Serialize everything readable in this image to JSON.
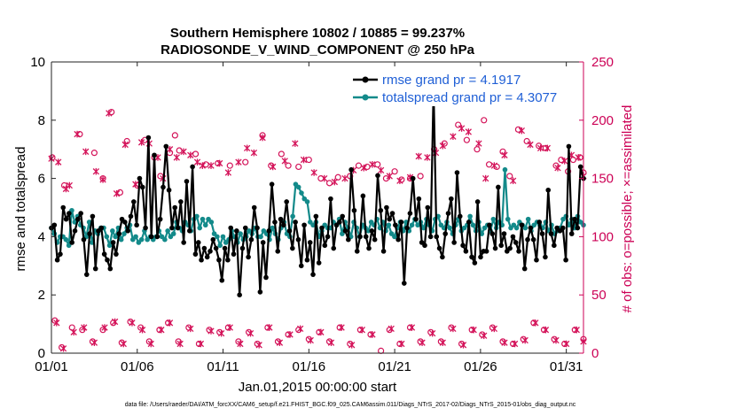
{
  "chart_data": {
    "type": "line",
    "title": "Southern Hemisphere 10802 / 10885 = 99.237%",
    "subtitle": "RADIOSONDE_V_WIND_COMPONENT @ 250 hPa",
    "xlabel": "Jan.01,2015 00:00:00 start",
    "ylabel_left": "rmse and totalspread",
    "ylabel_right": "# of obs: o=possible; ×=assimilated",
    "xlim": [
      0,
      31
    ],
    "ylim_left": [
      0,
      10
    ],
    "ylim_right": [
      0,
      250
    ],
    "x_ticks": [
      0,
      5,
      10,
      15,
      20,
      25,
      30
    ],
    "x_tick_labels": [
      "01/01",
      "01/06",
      "01/11",
      "01/16",
      "01/21",
      "01/26",
      "01/31"
    ],
    "y_ticks_left": [
      "0",
      "2",
      "4",
      "6",
      "8",
      "10"
    ],
    "y_ticks_right": [
      "0",
      "50",
      "100",
      "150",
      "200",
      "250"
    ],
    "series": [
      {
        "name": "rmse grand pr = 4.1917",
        "color": "#000000",
        "values": [
          4.3,
          4.4,
          3.2,
          3.4,
          5.0,
          4.6,
          4.8,
          3.8,
          4.2,
          4.6,
          4.8,
          3.9,
          2.7,
          4.1,
          4.7,
          2.9,
          4.2,
          4.3,
          3.4,
          3.2,
          2.9,
          3.8,
          3.4,
          4.1,
          4.6,
          4.5,
          4.2,
          4.7,
          5.2,
          4.4,
          6.0,
          5.7,
          4.3,
          7.4,
          4.0,
          6.8,
          4.0,
          4.6,
          5.7,
          7.1,
          5.6,
          4.3,
          5.0,
          4.3,
          5.2,
          3.8,
          5.9,
          4.2,
          6.4,
          3.4,
          3.8,
          3.2,
          3.6,
          3.3,
          3.5,
          3.9,
          3.6,
          3.2,
          2.5,
          3.6,
          3.2,
          4.3,
          3.4,
          4.2,
          2.0,
          3.6,
          4.3,
          3.3,
          3.9,
          5.0,
          4.3,
          2.1,
          3.8,
          2.6,
          4.2,
          5.8,
          4.5,
          3.5,
          4.6,
          4.4,
          5.2,
          4.2,
          3.6,
          4.5,
          3.9,
          3.0,
          4.4,
          3.2,
          3.8,
          2.7,
          4.7,
          3.1,
          4.3,
          3.7,
          4.0,
          5.3,
          3.6,
          4.4,
          4.5,
          4.7,
          4.2,
          3.9,
          6.3,
          4.9,
          3.5,
          4.0,
          5.4,
          4.0,
          3.6,
          4.2,
          3.9,
          6.1,
          4.9,
          3.5,
          5.0,
          4.6,
          4.8,
          4.4,
          3.9,
          4.5,
          2.4,
          4.3,
          4.8,
          6.0,
          4.6,
          5.3,
          3.8,
          3.7,
          5.0,
          4.0,
          9.1,
          4.0,
          3.6,
          3.3,
          4.1,
          4.8,
          5.3,
          3.8,
          6.2,
          4.7,
          3.7,
          3.5,
          4.5,
          3.3,
          3.1,
          5.2,
          3.3,
          3.5,
          3.5,
          4.4,
          4.1,
          3.6,
          5.7,
          3.7,
          4.1,
          3.5,
          3.6,
          4.0,
          3.8,
          3.5,
          4.4,
          2.9,
          3.9,
          4.3,
          3.9,
          3.2,
          4.5,
          4.1,
          3.3,
          5.6,
          4.1,
          3.7,
          4.3,
          4.2,
          4.3,
          3.2,
          7.1,
          4.1,
          4.6,
          4.3,
          6.4,
          6.0
        ]
      },
      {
        "name": "totalspread grand pr = 4.3077",
        "color": "#138a8a",
        "values": [
          4.3,
          4.1,
          3.8,
          4.0,
          4.0,
          3.9,
          3.7,
          4.9,
          4.5,
          4.7,
          4.4,
          4.3,
          4.0,
          4.5,
          3.8,
          4.2,
          4.1,
          4.3,
          4.3,
          4.0,
          3.7,
          4.2,
          4.0,
          4.3,
          3.9,
          4.1,
          4.3,
          4.4,
          3.9,
          4.0,
          3.8,
          3.9,
          4.2,
          3.9,
          4.0,
          3.9,
          4.0,
          4.2,
          4.0,
          3.9,
          4.2,
          4.0,
          4.1,
          4.5,
          4.3,
          4.2,
          4.5,
          4.4,
          4.2,
          4.6,
          4.7,
          4.3,
          4.6,
          4.4,
          4.6,
          4.5,
          4.1,
          4.0,
          3.7,
          4.0,
          3.8,
          3.9,
          4.2,
          4.0,
          3.8,
          4.1,
          3.9,
          4.0,
          4.2,
          4.1,
          4.3,
          4.0,
          4.0,
          4.2,
          4.1,
          3.9,
          4.3,
          4.1,
          3.9,
          4.3,
          4.5,
          4.1,
          4.0,
          4.7,
          5.8,
          5.7,
          5.5,
          5.3,
          5.2,
          4.5,
          4.4,
          4.5,
          4.0,
          4.2,
          4.4,
          4.3,
          4.3,
          4.5,
          4.4,
          4.6,
          4.1,
          4.5,
          4.3,
          4.0,
          4.5,
          4.3,
          4.0,
          4.4,
          4.3,
          4.2,
          4.5,
          4.4,
          4.6,
          4.3,
          4.5,
          4.2,
          4.4,
          4.1,
          4.0,
          4.3,
          4.5,
          4.2,
          4.5,
          4.2,
          4.4,
          4.6,
          4.4,
          4.5,
          4.3,
          4.6,
          4.4,
          4.2,
          4.6,
          4.7,
          4.4,
          4.3,
          4.5,
          4.3,
          4.1,
          4.4,
          4.6,
          4.2,
          4.3,
          4.4,
          4.7,
          4.4,
          4.2,
          4.5,
          4.1,
          4.3,
          4.4,
          4.2,
          4.6,
          4.3,
          4.5,
          4.4,
          6.3,
          4.6,
          4.3,
          4.4,
          4.3,
          4.5,
          4.4,
          4.3,
          4.6,
          4.2,
          4.4,
          4.5,
          4.4,
          4.3,
          4.5,
          4.2,
          4.4,
          4.1,
          4.2,
          4.3,
          4.6,
          4.7,
          4.4,
          4.6,
          4.3,
          4.7,
          4.5,
          4.4
        ]
      }
    ],
    "obs_possible": [
      {
        "x": 0.05,
        "y": 168
      },
      {
        "x": 0.75,
        "y": 144
      },
      {
        "x": 1.65,
        "y": 188
      },
      {
        "x": 2.5,
        "y": 172
      },
      {
        "x": 3.0,
        "y": 150
      },
      {
        "x": 3.5,
        "y": 207
      },
      {
        "x": 4.0,
        "y": 138
      },
      {
        "x": 4.4,
        "y": 182
      },
      {
        "x": 5.0,
        "y": 144
      },
      {
        "x": 5.45,
        "y": 183
      },
      {
        "x": 6.0,
        "y": 168
      },
      {
        "x": 6.35,
        "y": 152
      },
      {
        "x": 6.9,
        "y": 172
      },
      {
        "x": 7.2,
        "y": 187
      },
      {
        "x": 7.45,
        "y": 174
      },
      {
        "x": 8.4,
        "y": 171
      },
      {
        "x": 9.0,
        "y": 162
      },
      {
        "x": 9.7,
        "y": 163
      },
      {
        "x": 10.4,
        "y": 161
      },
      {
        "x": 11.3,
        "y": 164
      },
      {
        "x": 12.3,
        "y": 187
      },
      {
        "x": 12.8,
        "y": 161
      },
      {
        "x": 13.4,
        "y": 171
      },
      {
        "x": 13.8,
        "y": 161
      },
      {
        "x": 14.4,
        "y": 160
      },
      {
        "x": 15.0,
        "y": 166
      },
      {
        "x": 15.7,
        "y": 150
      },
      {
        "x": 16.2,
        "y": 146
      },
      {
        "x": 16.7,
        "y": 151
      },
      {
        "x": 17.4,
        "y": 152
      },
      {
        "x": 17.9,
        "y": 161
      },
      {
        "x": 18.4,
        "y": 160
      },
      {
        "x": 19.0,
        "y": 162
      },
      {
        "x": 19.5,
        "y": 150
      },
      {
        "x": 20.0,
        "y": 156
      },
      {
        "x": 20.4,
        "y": 149
      },
      {
        "x": 20.9,
        "y": 150
      },
      {
        "x": 21.5,
        "y": 152
      },
      {
        "x": 22.3,
        "y": 175
      },
      {
        "x": 22.9,
        "y": 180
      },
      {
        "x": 23.7,
        "y": 196
      },
      {
        "x": 24.2,
        "y": 183
      },
      {
        "x": 24.8,
        "y": 175
      },
      {
        "x": 25.2,
        "y": 200
      },
      {
        "x": 25.5,
        "y": 162
      },
      {
        "x": 25.95,
        "y": 160
      },
      {
        "x": 26.3,
        "y": 173
      },
      {
        "x": 26.7,
        "y": 152
      },
      {
        "x": 27.2,
        "y": 192
      },
      {
        "x": 27.7,
        "y": 182
      },
      {
        "x": 28.4,
        "y": 178
      },
      {
        "x": 28.8,
        "y": 176
      },
      {
        "x": 29.4,
        "y": 161
      },
      {
        "x": 29.7,
        "y": 166
      },
      {
        "x": 30.1,
        "y": 156
      },
      {
        "x": 30.4,
        "y": 166
      },
      {
        "x": 30.8,
        "y": 168
      },
      {
        "x": 31.0,
        "y": 155
      },
      {
        "x": 0.2,
        "y": 28
      },
      {
        "x": 0.6,
        "y": 5
      },
      {
        "x": 1.2,
        "y": 22
      },
      {
        "x": 1.8,
        "y": 20
      },
      {
        "x": 2.4,
        "y": 10
      },
      {
        "x": 3.0,
        "y": 20
      },
      {
        "x": 3.6,
        "y": 26
      },
      {
        "x": 4.1,
        "y": 9
      },
      {
        "x": 4.6,
        "y": 27
      },
      {
        "x": 5.2,
        "y": 22
      },
      {
        "x": 5.7,
        "y": 10
      },
      {
        "x": 6.3,
        "y": 20
      },
      {
        "x": 6.8,
        "y": 26
      },
      {
        "x": 7.4,
        "y": 10
      },
      {
        "x": 8.0,
        "y": 22
      },
      {
        "x": 8.6,
        "y": 8
      },
      {
        "x": 9.2,
        "y": 20
      },
      {
        "x": 9.8,
        "y": 18
      },
      {
        "x": 10.3,
        "y": 22
      },
      {
        "x": 10.9,
        "y": 10
      },
      {
        "x": 11.5,
        "y": 18
      },
      {
        "x": 12.0,
        "y": 8
      },
      {
        "x": 12.6,
        "y": 22
      },
      {
        "x": 13.2,
        "y": 10
      },
      {
        "x": 13.8,
        "y": 16
      },
      {
        "x": 14.4,
        "y": 20
      },
      {
        "x": 15.0,
        "y": 12
      },
      {
        "x": 15.6,
        "y": 18
      },
      {
        "x": 16.2,
        "y": 10
      },
      {
        "x": 16.8,
        "y": 22
      },
      {
        "x": 17.4,
        "y": 8
      },
      {
        "x": 18.0,
        "y": 20
      },
      {
        "x": 18.6,
        "y": 16
      },
      {
        "x": 19.2,
        "y": 2
      },
      {
        "x": 19.7,
        "y": 20
      },
      {
        "x": 20.3,
        "y": 8
      },
      {
        "x": 20.9,
        "y": 22
      },
      {
        "x": 21.5,
        "y": 10
      },
      {
        "x": 22.1,
        "y": 18
      },
      {
        "x": 22.7,
        "y": 10
      },
      {
        "x": 23.3,
        "y": 22
      },
      {
        "x": 23.9,
        "y": 8
      },
      {
        "x": 24.5,
        "y": 20
      },
      {
        "x": 25.1,
        "y": 16
      },
      {
        "x": 25.7,
        "y": 22
      },
      {
        "x": 26.3,
        "y": 10
      },
      {
        "x": 26.9,
        "y": 8
      },
      {
        "x": 27.5,
        "y": 12
      },
      {
        "x": 28.1,
        "y": 26
      },
      {
        "x": 28.7,
        "y": 20
      },
      {
        "x": 29.3,
        "y": 12
      },
      {
        "x": 29.9,
        "y": 8
      },
      {
        "x": 30.5,
        "y": 20
      },
      {
        "x": 31.0,
        "y": 12
      }
    ],
    "obs_assimilated": [
      {
        "x": 0.0,
        "y": 167
      },
      {
        "x": 0.4,
        "y": 164
      },
      {
        "x": 0.85,
        "y": 141
      },
      {
        "x": 1.05,
        "y": 144
      },
      {
        "x": 1.5,
        "y": 188
      },
      {
        "x": 2.0,
        "y": 173
      },
      {
        "x": 2.6,
        "y": 156
      },
      {
        "x": 3.0,
        "y": 149
      },
      {
        "x": 3.35,
        "y": 206
      },
      {
        "x": 3.8,
        "y": 137
      },
      {
        "x": 4.3,
        "y": 179
      },
      {
        "x": 4.9,
        "y": 145
      },
      {
        "x": 5.25,
        "y": 181
      },
      {
        "x": 5.7,
        "y": 180
      },
      {
        "x": 6.2,
        "y": 168
      },
      {
        "x": 6.5,
        "y": 150
      },
      {
        "x": 6.9,
        "y": 175
      },
      {
        "x": 7.3,
        "y": 168
      },
      {
        "x": 7.7,
        "y": 173
      },
      {
        "x": 8.1,
        "y": 170
      },
      {
        "x": 8.5,
        "y": 164
      },
      {
        "x": 8.8,
        "y": 161
      },
      {
        "x": 9.3,
        "y": 161
      },
      {
        "x": 9.8,
        "y": 163
      },
      {
        "x": 10.3,
        "y": 155
      },
      {
        "x": 10.9,
        "y": 164
      },
      {
        "x": 11.4,
        "y": 176
      },
      {
        "x": 11.8,
        "y": 172
      },
      {
        "x": 12.3,
        "y": 185
      },
      {
        "x": 12.9,
        "y": 160
      },
      {
        "x": 13.6,
        "y": 165
      },
      {
        "x": 14.2,
        "y": 180
      },
      {
        "x": 14.7,
        "y": 166
      },
      {
        "x": 15.3,
        "y": 155
      },
      {
        "x": 15.9,
        "y": 150
      },
      {
        "x": 16.5,
        "y": 147
      },
      {
        "x": 17.1,
        "y": 150
      },
      {
        "x": 17.6,
        "y": 157
      },
      {
        "x": 18.2,
        "y": 159
      },
      {
        "x": 18.7,
        "y": 162
      },
      {
        "x": 19.2,
        "y": 157
      },
      {
        "x": 19.7,
        "y": 152
      },
      {
        "x": 20.3,
        "y": 148
      },
      {
        "x": 20.9,
        "y": 151
      },
      {
        "x": 21.4,
        "y": 169
      },
      {
        "x": 21.9,
        "y": 168
      },
      {
        "x": 22.4,
        "y": 172
      },
      {
        "x": 22.8,
        "y": 178
      },
      {
        "x": 23.4,
        "y": 186
      },
      {
        "x": 23.9,
        "y": 193
      },
      {
        "x": 24.3,
        "y": 190
      },
      {
        "x": 24.9,
        "y": 180
      },
      {
        "x": 25.3,
        "y": 150
      },
      {
        "x": 25.8,
        "y": 161
      },
      {
        "x": 26.4,
        "y": 170
      },
      {
        "x": 26.9,
        "y": 148
      },
      {
        "x": 27.4,
        "y": 191
      },
      {
        "x": 27.9,
        "y": 179
      },
      {
        "x": 28.5,
        "y": 176
      },
      {
        "x": 28.9,
        "y": 176
      },
      {
        "x": 29.5,
        "y": 159
      },
      {
        "x": 29.9,
        "y": 165
      },
      {
        "x": 30.3,
        "y": 170
      },
      {
        "x": 30.7,
        "y": 168
      },
      {
        "x": 31.0,
        "y": 152
      },
      {
        "x": 0.3,
        "y": 26
      },
      {
        "x": 0.7,
        "y": 4
      },
      {
        "x": 1.3,
        "y": 18
      },
      {
        "x": 1.9,
        "y": 22
      },
      {
        "x": 2.5,
        "y": 9
      },
      {
        "x": 3.1,
        "y": 22
      },
      {
        "x": 3.7,
        "y": 27
      },
      {
        "x": 4.2,
        "y": 8
      },
      {
        "x": 4.7,
        "y": 26
      },
      {
        "x": 5.3,
        "y": 20
      },
      {
        "x": 5.8,
        "y": 8
      },
      {
        "x": 6.4,
        "y": 20
      },
      {
        "x": 6.9,
        "y": 26
      },
      {
        "x": 7.5,
        "y": 8
      },
      {
        "x": 8.1,
        "y": 21
      },
      {
        "x": 8.7,
        "y": 8
      },
      {
        "x": 9.3,
        "y": 19
      },
      {
        "x": 9.9,
        "y": 17
      },
      {
        "x": 10.4,
        "y": 22
      },
      {
        "x": 11.0,
        "y": 8
      },
      {
        "x": 11.6,
        "y": 17
      },
      {
        "x": 12.1,
        "y": 7
      },
      {
        "x": 12.7,
        "y": 22
      },
      {
        "x": 13.3,
        "y": 9
      },
      {
        "x": 13.9,
        "y": 16
      },
      {
        "x": 14.5,
        "y": 21
      },
      {
        "x": 15.1,
        "y": 11
      },
      {
        "x": 15.7,
        "y": 18
      },
      {
        "x": 16.3,
        "y": 9
      },
      {
        "x": 16.9,
        "y": 22
      },
      {
        "x": 17.5,
        "y": 7
      },
      {
        "x": 18.1,
        "y": 20
      },
      {
        "x": 18.7,
        "y": 16
      },
      {
        "x": 19.8,
        "y": 21
      },
      {
        "x": 20.4,
        "y": 8
      },
      {
        "x": 21.0,
        "y": 22
      },
      {
        "x": 21.6,
        "y": 9
      },
      {
        "x": 22.2,
        "y": 17
      },
      {
        "x": 22.8,
        "y": 9
      },
      {
        "x": 23.4,
        "y": 21
      },
      {
        "x": 24.0,
        "y": 7
      },
      {
        "x": 24.6,
        "y": 20
      },
      {
        "x": 25.2,
        "y": 15
      },
      {
        "x": 25.8,
        "y": 21
      },
      {
        "x": 26.4,
        "y": 9
      },
      {
        "x": 27.0,
        "y": 8
      },
      {
        "x": 27.6,
        "y": 11
      },
      {
        "x": 28.2,
        "y": 26
      },
      {
        "x": 28.8,
        "y": 20
      },
      {
        "x": 29.4,
        "y": 11
      },
      {
        "x": 30.0,
        "y": 8
      },
      {
        "x": 30.6,
        "y": 20
      },
      {
        "x": 31.0,
        "y": 10
      }
    ]
  },
  "colors": {
    "axis_right": "#cc0055",
    "obs": "#d4145a",
    "legend_text": "#1f5fd6"
  },
  "footer": {
    "text": "data file: /Users/raeder/DAI/ATM_forcXX/CAM6_setup/f.e21.FHIST_BGC.f09_025.CAM6assim.011/Diags_NTrS_2017-02/Diags_NTrS_2015-01/obs_diag_output.nc"
  }
}
